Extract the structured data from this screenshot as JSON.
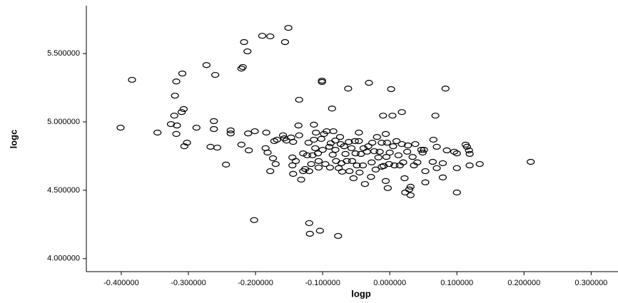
{
  "chart_data": {
    "type": "scatter",
    "x_label": "logp",
    "y_label": "logc",
    "color": "#000000",
    "xlim": [
      -0.452,
      0.34
    ],
    "ylim": [
      3.905,
      5.85
    ],
    "xticks": [
      {
        "value": -0.4,
        "label": "-0.400000"
      },
      {
        "value": -0.3,
        "label": "-0.300000"
      },
      {
        "value": -0.2,
        "label": "-0.200000"
      },
      {
        "value": -0.1,
        "label": "-0.100000"
      },
      {
        "value": 0,
        "label": "0.000000"
      },
      {
        "value": 0.1,
        "label": "0.100000"
      },
      {
        "value": 0.2,
        "label": "0.200000"
      },
      {
        "value": 0.3,
        "label": "0.300000"
      }
    ],
    "yticks": [
      {
        "value": 4.0,
        "label": "4.000000"
      },
      {
        "value": 4.5,
        "label": "4.500000"
      },
      {
        "value": 5.0,
        "label": "5.000000"
      },
      {
        "value": 5.5,
        "label": "5.500000"
      }
    ],
    "x": [
      -0.401,
      -0.384,
      -0.346,
      -0.32,
      -0.318,
      -0.309,
      -0.321,
      -0.326,
      -0.31,
      -0.307,
      -0.317,
      -0.306,
      -0.302,
      -0.318,
      -0.288,
      -0.273,
      -0.26,
      -0.262,
      -0.262,
      -0.267,
      -0.257,
      -0.244,
      -0.237,
      -0.237,
      -0.221,
      -0.219,
      -0.221,
      -0.217,
      -0.212,
      -0.201,
      -0.211,
      -0.21,
      -0.202,
      -0.19,
      -0.178,
      -0.184,
      -0.185,
      -0.182,
      -0.178,
      -0.17,
      -0.174,
      -0.172,
      -0.168,
      -0.156,
      -0.151,
      -0.159,
      -0.157,
      -0.154,
      -0.147,
      -0.144,
      -0.145,
      -0.145,
      -0.144,
      -0.14,
      -0.135,
      -0.136,
      -0.135,
      -0.132,
      -0.129,
      -0.129,
      -0.126,
      -0.123,
      -0.121,
      -0.12,
      -0.119,
      -0.12,
      -0.117,
      -0.115,
      -0.113,
      -0.113,
      -0.111,
      -0.11,
      -0.107,
      -0.106,
      -0.106,
      -0.104,
      -0.101,
      -0.101,
      -0.102,
      -0.1,
      -0.098,
      -0.096,
      -0.094,
      -0.09,
      -0.089,
      -0.088,
      -0.086,
      -0.085,
      -0.084,
      -0.081,
      -0.081,
      -0.08,
      -0.077,
      -0.076,
      -0.074,
      -0.073,
      -0.072,
      -0.071,
      -0.068,
      -0.066,
      -0.064,
      -0.062,
      -0.061,
      -0.06,
      -0.057,
      -0.056,
      -0.054,
      -0.052,
      -0.051,
      -0.049,
      -0.046,
      -0.046,
      -0.045,
      -0.043,
      -0.04,
      -0.039,
      -0.037,
      -0.034,
      -0.032,
      -0.031,
      -0.028,
      -0.027,
      -0.026,
      -0.023,
      -0.021,
      -0.019,
      -0.017,
      -0.015,
      -0.012,
      -0.012,
      -0.01,
      -0.009,
      -0.006,
      -0.006,
      -0.005,
      -0.004,
      -0.003,
      -0.001,
      0.0,
      0.002,
      0.004,
      0.005,
      0.007,
      0.01,
      0.013,
      0.015,
      0.018,
      0.018,
      0.02,
      0.022,
      0.023,
      0.026,
      0.027,
      0.029,
      0.031,
      0.031,
      0.034,
      0.036,
      0.038,
      0.041,
      0.047,
      0.049,
      0.051,
      0.053,
      0.053,
      0.064,
      0.065,
      0.068,
      0.07,
      0.07,
      0.079,
      0.079,
      0.083,
      0.085,
      0.096,
      0.1,
      0.1,
      0.1,
      0.113,
      0.115,
      0.118,
      0.119,
      0.119,
      0.134,
      0.21
    ],
    "values": [
      4.958,
      5.308,
      4.922,
      5.192,
      5.296,
      5.354,
      5.046,
      4.984,
      5.072,
      5.094,
      4.974,
      4.822,
      4.848,
      4.912,
      4.958,
      5.416,
      5.344,
      5.006,
      4.948,
      4.818,
      4.812,
      4.688,
      4.938,
      4.916,
      4.834,
      5.402,
      5.39,
      5.584,
      5.516,
      4.932,
      4.916,
      4.792,
      4.282,
      5.63,
      5.626,
      4.922,
      4.808,
      4.776,
      4.64,
      4.692,
      4.734,
      4.86,
      4.87,
      5.584,
      5.688,
      4.902,
      4.88,
      4.864,
      4.886,
      4.854,
      4.74,
      4.682,
      4.62,
      4.714,
      5.162,
      4.974,
      4.902,
      4.578,
      4.77,
      4.64,
      4.656,
      4.756,
      4.848,
      4.26,
      4.182,
      4.64,
      4.692,
      4.756,
      4.98,
      4.87,
      4.808,
      4.922,
      4.77,
      4.714,
      4.666,
      4.204,
      5.292,
      5.302,
      4.876,
      4.796,
      4.912,
      4.692,
      4.932,
      4.818,
      4.666,
      4.844,
      5.098,
      4.76,
      4.932,
      4.864,
      4.796,
      4.714,
      4.166,
      4.662,
      4.89,
      4.838,
      4.698,
      4.636,
      4.822,
      4.766,
      4.714,
      5.244,
      4.854,
      4.64,
      4.808,
      4.714,
      4.588,
      4.86,
      4.77,
      4.682,
      4.922,
      4.86,
      4.63,
      4.766,
      4.682,
      4.808,
      4.546,
      4.782,
      4.822,
      5.286,
      4.598,
      4.704,
      4.848,
      4.786,
      4.652,
      4.89,
      4.74,
      4.782,
      4.848,
      4.672,
      5.046,
      4.678,
      4.912,
      4.568,
      4.744,
      4.848,
      4.516,
      4.692,
      4.776,
      5.24,
      5.046,
      4.822,
      4.682,
      4.86,
      4.756,
      4.682,
      5.072,
      4.838,
      4.704,
      4.588,
      4.484,
      4.782,
      4.828,
      4.506,
      4.526,
      4.464,
      4.744,
      4.682,
      4.838,
      4.704,
      4.796,
      4.776,
      4.796,
      4.64,
      4.558,
      4.708,
      4.87,
      5.046,
      4.818,
      4.662,
      4.698,
      4.594,
      5.244,
      4.792,
      4.782,
      4.484,
      4.662,
      4.77,
      4.834,
      4.818,
      4.792,
      4.766,
      4.682,
      4.692,
      4.708
    ]
  }
}
